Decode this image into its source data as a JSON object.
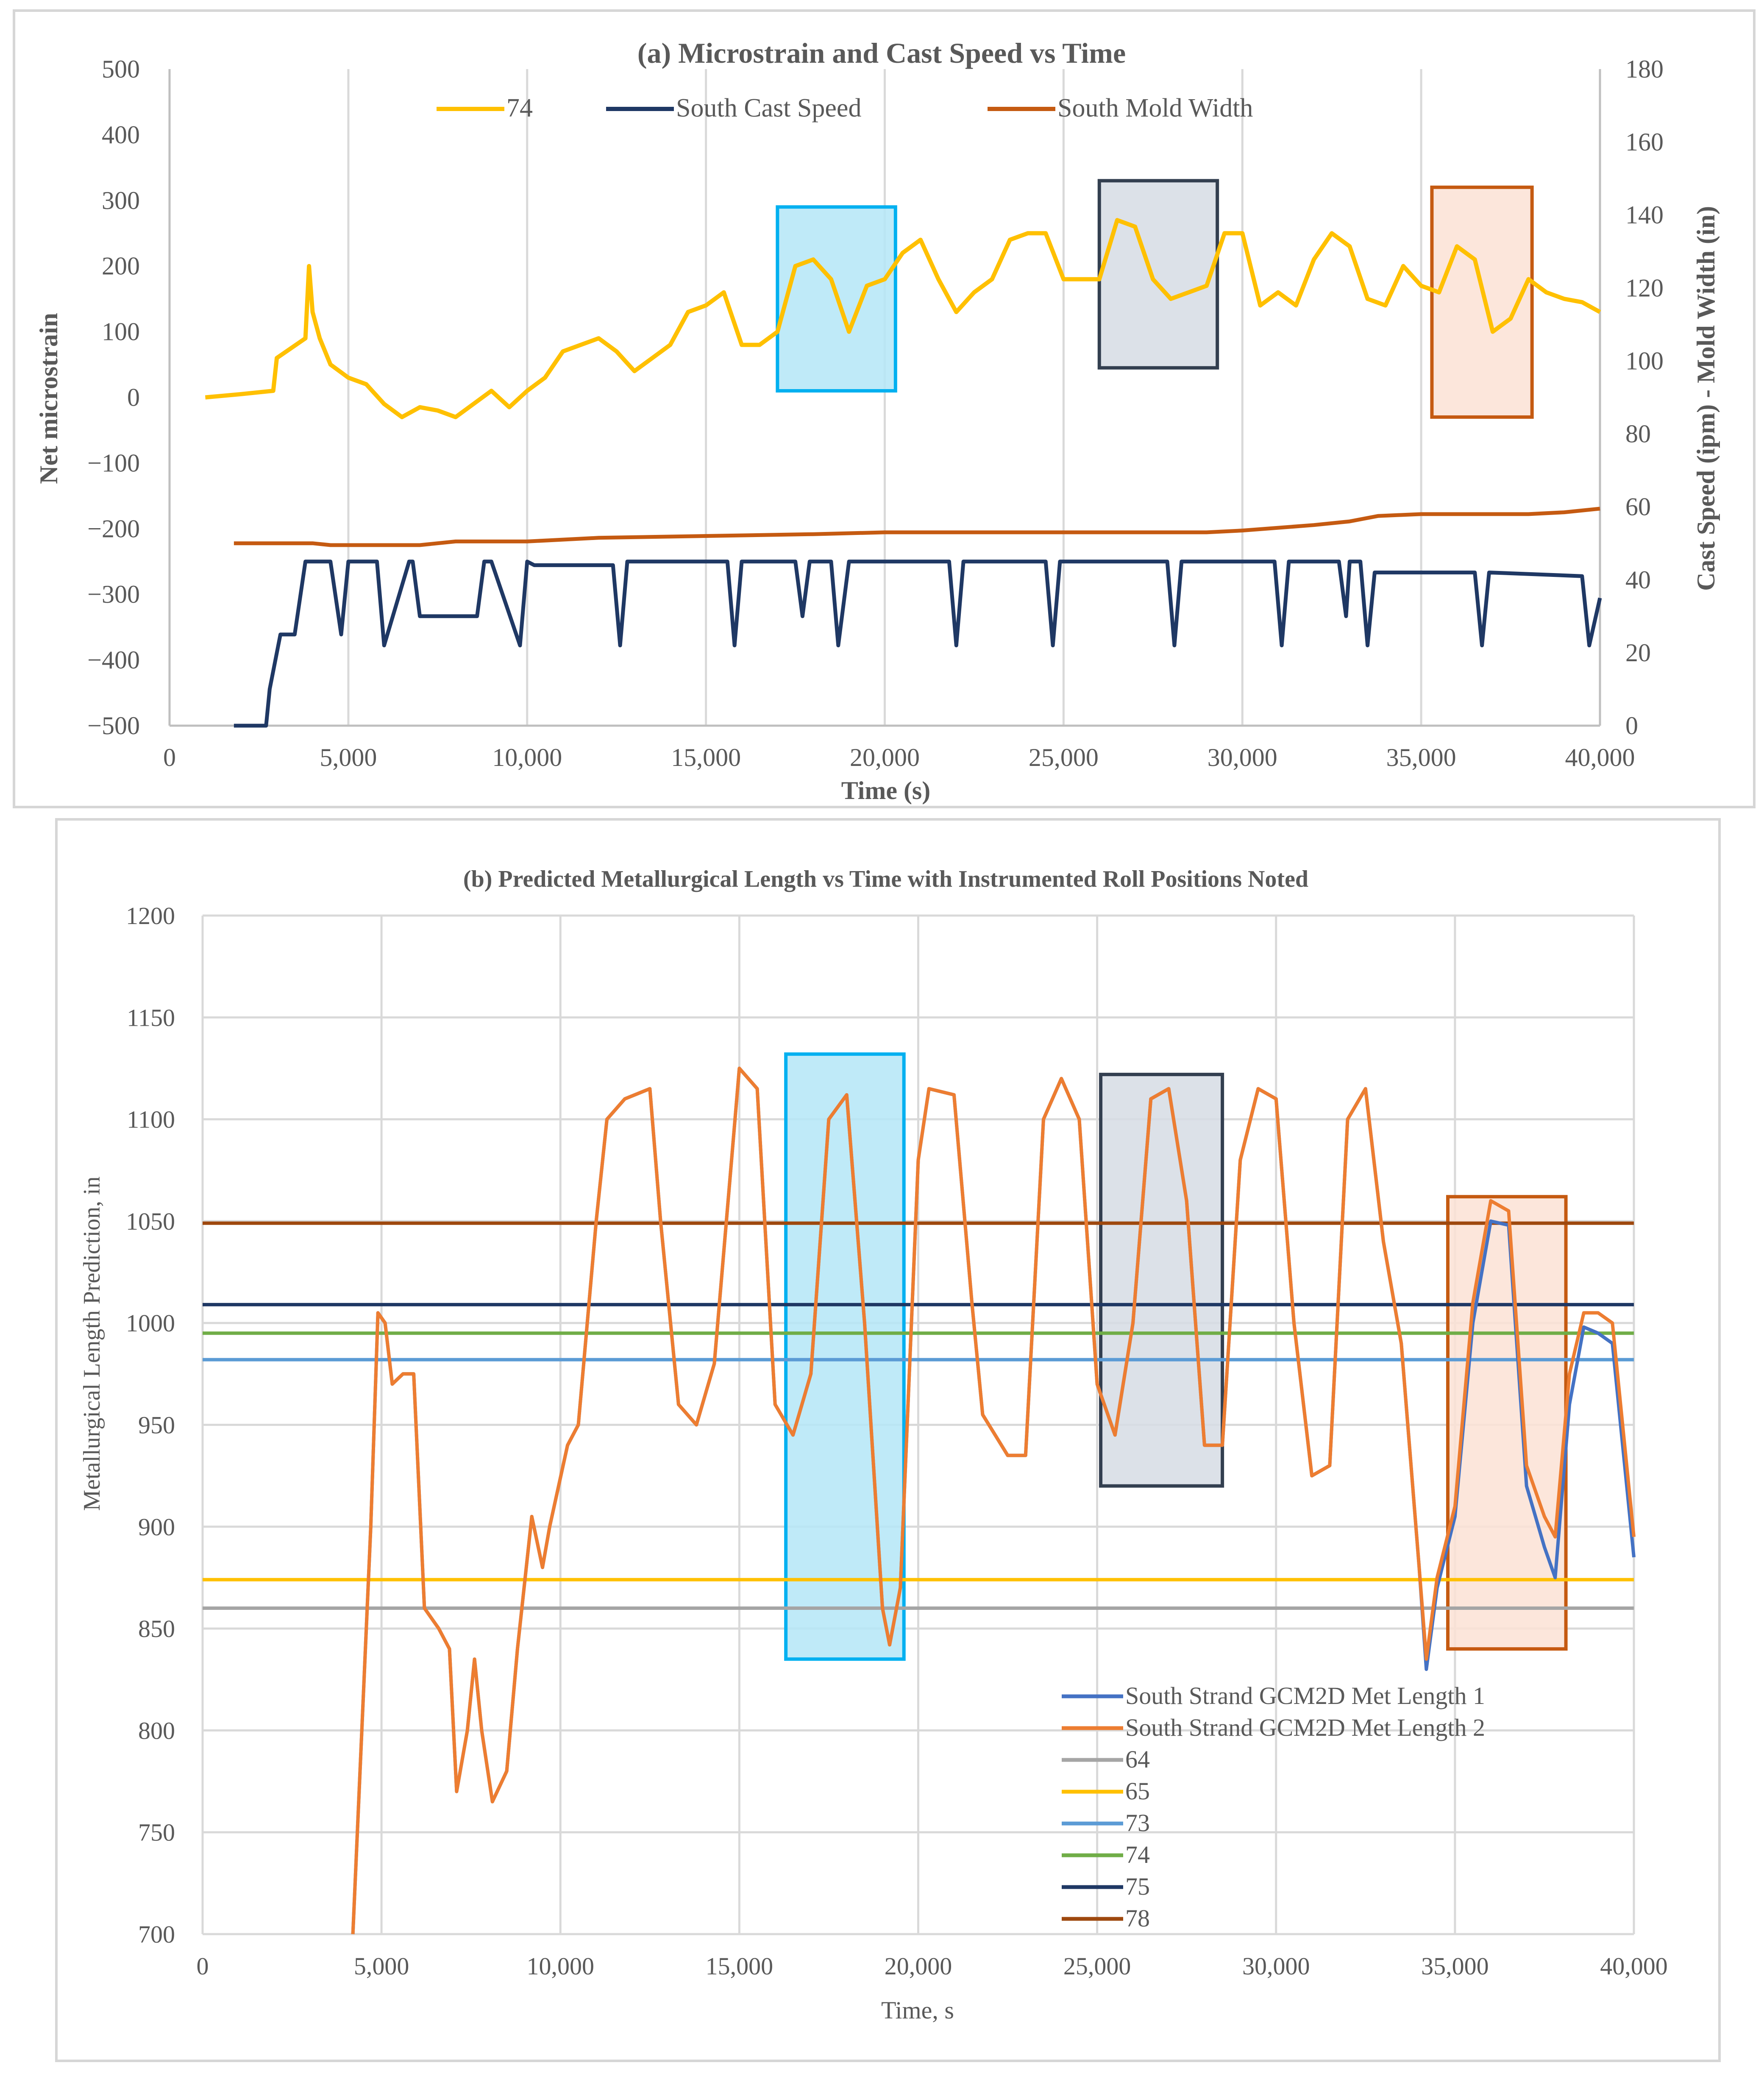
{
  "chart_data": [
    {
      "type": "line",
      "title": "(a) Microstrain and Cast Speed  vs Time",
      "xlabel": "Time (s)",
      "ylabel": "Net microstrain",
      "y2label": "Cast Speed (ipm) - Mold Width (in)",
      "xlim": [
        0,
        40000
      ],
      "ylim": [
        -500,
        500
      ],
      "y2lim": [
        0,
        180
      ],
      "xticks": [
        0,
        5000,
        10000,
        15000,
        20000,
        25000,
        30000,
        35000,
        40000
      ],
      "xtick_labels": [
        "0",
        "5,000",
        "10,000",
        "15,000",
        "20,000",
        "25,000",
        "30,000",
        "35,000",
        "40,000"
      ],
      "yticks": [
        -500,
        -400,
        -300,
        -200,
        -100,
        0,
        100,
        200,
        300,
        400,
        500
      ],
      "ytick_labels": [
        "−500",
        "−400",
        "−300",
        "−200",
        "−100",
        "0",
        "100",
        "200",
        "300",
        "400",
        "500"
      ],
      "y2ticks": [
        0,
        20,
        40,
        60,
        80,
        100,
        120,
        140,
        160,
        180
      ],
      "y2tick_labels": [
        "0",
        "20",
        "40",
        "60",
        "80",
        "100",
        "120",
        "140",
        "160",
        "180"
      ],
      "grid": "vertical",
      "legend_position": "top",
      "series": [
        {
          "name": "74",
          "axis": "left",
          "color": "#FFC000",
          "x": [
            1000,
            2000,
            2900,
            3000,
            3800,
            3900,
            4000,
            4200,
            4500,
            5000,
            5500,
            6000,
            6500,
            7000,
            7500,
            8000,
            8500,
            9000,
            9500,
            10000,
            10500,
            11000,
            11500,
            12000,
            12500,
            13000,
            13500,
            14000,
            14500,
            15000,
            15500,
            16000,
            16500,
            17000,
            17500,
            18000,
            18500,
            19000,
            19500,
            20000,
            20500,
            21000,
            21500,
            22000,
            22500,
            23000,
            23500,
            24000,
            24500,
            25000,
            25500,
            26000,
            26500,
            27000,
            27500,
            28000,
            28500,
            29000,
            29500,
            30000,
            30500,
            31000,
            31500,
            32000,
            32500,
            33000,
            33500,
            34000,
            34500,
            35000,
            35500,
            36000,
            36500,
            37000,
            37500,
            38000,
            38500,
            39000,
            39500,
            40000
          ],
          "values": [
            0,
            5,
            10,
            60,
            90,
            200,
            130,
            90,
            50,
            30,
            20,
            -10,
            -30,
            -15,
            -20,
            -30,
            -10,
            10,
            -15,
            10,
            30,
            70,
            80,
            90,
            70,
            40,
            60,
            80,
            130,
            140,
            160,
            80,
            80,
            100,
            200,
            210,
            180,
            100,
            170,
            180,
            220,
            240,
            180,
            130,
            160,
            180,
            240,
            250,
            250,
            180,
            180,
            180,
            270,
            260,
            180,
            150,
            160,
            170,
            250,
            250,
            140,
            160,
            140,
            210,
            250,
            230,
            150,
            140,
            200,
            170,
            160,
            230,
            210,
            100,
            120,
            180,
            160,
            150,
            145,
            130
          ]
        },
        {
          "name": "South Cast Speed",
          "axis": "right",
          "color": "#1F3864",
          "x": [
            1800,
            2700,
            2800,
            3100,
            3500,
            3800,
            4000,
            4500,
            4800,
            5000,
            5200,
            5800,
            6000,
            6700,
            6800,
            7000,
            8600,
            8800,
            9000,
            9800,
            10000,
            10200,
            12400,
            12600,
            12800,
            15600,
            15800,
            16000,
            17500,
            17700,
            17900,
            18500,
            18700,
            19000,
            19200,
            21800,
            22000,
            22200,
            24500,
            24700,
            24900,
            27900,
            28100,
            28300,
            30900,
            31100,
            31300,
            32700,
            32900,
            33000,
            33300,
            33500,
            33700,
            34200,
            36500,
            36700,
            36900,
            39500,
            39700,
            40000
          ],
          "values": [
            0,
            0,
            10,
            25,
            25,
            45,
            45,
            45,
            25,
            45,
            45,
            45,
            22,
            45,
            45,
            30,
            30,
            45,
            45,
            22,
            45,
            44,
            44,
            22,
            45,
            45,
            22,
            45,
            45,
            30,
            45,
            45,
            22,
            45,
            45,
            45,
            22,
            45,
            45,
            22,
            45,
            45,
            22,
            45,
            45,
            22,
            45,
            45,
            30,
            45,
            45,
            22,
            42,
            42,
            42,
            22,
            42,
            41,
            22,
            35
          ]
        },
        {
          "name": "South Mold Width",
          "axis": "right",
          "color": "#C55A11",
          "x": [
            1800,
            4000,
            4500,
            7000,
            8000,
            10000,
            12000,
            15000,
            18000,
            20000,
            25000,
            29000,
            30000,
            32000,
            33000,
            33800,
            35000,
            38000,
            39000,
            40000
          ],
          "values": [
            50,
            50,
            49.5,
            49.5,
            50.5,
            50.5,
            51.5,
            52,
            52.5,
            53,
            53,
            53,
            53.5,
            55,
            56,
            57.5,
            58,
            58,
            58.5,
            59.5
          ]
        }
      ],
      "highlight_boxes": [
        {
          "color": "#00B0F0",
          "fill": "#B4E6F7",
          "x_range": [
            17000,
            20300
          ],
          "y_range": [
            10,
            290
          ]
        },
        {
          "color": "#333F50",
          "fill": "#D6DCE4",
          "x_range": [
            26000,
            29300
          ],
          "y_range": [
            45,
            330
          ]
        },
        {
          "color": "#C55A11",
          "fill": "#FBE2D5",
          "x_range": [
            35300,
            38100
          ],
          "y_range": [
            -30,
            320
          ]
        }
      ]
    },
    {
      "type": "line",
      "title": "(b) Predicted Metallurgical Length vs Time with Instrumented Roll Positions Noted",
      "xlabel": "Time, s",
      "ylabel": "Metallurgical Length Prediction, in",
      "xlim": [
        0,
        40000
      ],
      "ylim": [
        700,
        1200
      ],
      "xticks": [
        0,
        5000,
        10000,
        15000,
        20000,
        25000,
        30000,
        35000,
        40000
      ],
      "xtick_labels": [
        "0",
        "5,000",
        "10,000",
        "15,000",
        "20,000",
        "25,000",
        "30,000",
        "35,000",
        "40,000"
      ],
      "yticks": [
        700,
        750,
        800,
        850,
        900,
        950,
        1000,
        1050,
        1100,
        1150,
        1200
      ],
      "ytick_labels": [
        "700",
        "750",
        "800",
        "850",
        "900",
        "950",
        "1000",
        "1050",
        "1100",
        "1150",
        "1200"
      ],
      "grid": "both",
      "legend_position": "bottom-right",
      "series": [
        {
          "name": "South Strand GCM2D Met Length 1",
          "color": "#4472C4",
          "x": [
            4200,
            4700,
            4900,
            5100,
            5300,
            5600,
            5900,
            6200,
            6600,
            6900,
            7100,
            7400,
            7600,
            7800,
            8100,
            8500,
            8800,
            9200,
            9500,
            9700,
            10200,
            10500,
            11000,
            11300,
            11800,
            12500,
            12800,
            13300,
            13800,
            14300,
            15000,
            15500,
            16000,
            16500,
            17000,
            17500,
            18000,
            18500,
            19000,
            19200,
            19500,
            20000,
            20300,
            21000,
            21500,
            21800,
            22500,
            23000,
            23500,
            24000,
            24500,
            25000,
            25500,
            26000,
            26500,
            27000,
            27500,
            28000,
            28500,
            29000,
            29500,
            30000,
            30500,
            31000,
            31500,
            32000,
            32500,
            33000,
            33500,
            34000,
            34200,
            34500,
            35000,
            35500,
            36000,
            36500,
            37000,
            37500,
            37800,
            38200,
            38600,
            39000,
            39400,
            40000
          ],
          "values": [
            700,
            900,
            1005,
            1000,
            970,
            975,
            975,
            860,
            850,
            840,
            770,
            800,
            835,
            800,
            765,
            780,
            840,
            905,
            880,
            900,
            940,
            950,
            1050,
            1100,
            1110,
            1115,
            1050,
            960,
            950,
            980,
            1125,
            1115,
            960,
            945,
            975,
            1100,
            1112,
            1000,
            860,
            842,
            870,
            1080,
            1115,
            1112,
            1010,
            955,
            935,
            935,
            1100,
            1120,
            1100,
            970,
            945,
            1000,
            1110,
            1115,
            1060,
            940,
            940,
            1080,
            1115,
            1110,
            1000,
            925,
            930,
            1100,
            1115,
            1040,
            990,
            880,
            830,
            870,
            905,
            1000,
            1050,
            1048,
            920,
            890,
            875,
            960,
            998,
            995,
            990,
            885
          ]
        },
        {
          "name": "South Strand GCM2D Met Length 2",
          "color": "#ED7D31",
          "x": [
            4200,
            4700,
            4900,
            5100,
            5300,
            5600,
            5900,
            6200,
            6600,
            6900,
            7100,
            7400,
            7600,
            7800,
            8100,
            8500,
            8800,
            9200,
            9500,
            9700,
            10200,
            10500,
            11000,
            11300,
            11800,
            12500,
            12800,
            13300,
            13800,
            14300,
            15000,
            15500,
            16000,
            16500,
            17000,
            17500,
            18000,
            18500,
            19000,
            19200,
            19500,
            20000,
            20300,
            21000,
            21500,
            21800,
            22500,
            23000,
            23500,
            24000,
            24500,
            25000,
            25500,
            26000,
            26500,
            27000,
            27500,
            28000,
            28500,
            29000,
            29500,
            30000,
            30500,
            31000,
            31500,
            32000,
            32500,
            33000,
            33500,
            34000,
            34200,
            34500,
            35000,
            35500,
            36000,
            36500,
            37000,
            37500,
            37800,
            38200,
            38600,
            39000,
            39400,
            40000
          ],
          "values": [
            700,
            900,
            1005,
            1000,
            970,
            975,
            975,
            860,
            850,
            840,
            770,
            800,
            835,
            800,
            765,
            780,
            840,
            905,
            880,
            900,
            940,
            950,
            1050,
            1100,
            1110,
            1115,
            1050,
            960,
            950,
            980,
            1125,
            1115,
            960,
            945,
            975,
            1100,
            1112,
            1000,
            860,
            842,
            870,
            1080,
            1115,
            1112,
            1010,
            955,
            935,
            935,
            1100,
            1120,
            1100,
            970,
            945,
            1000,
            1110,
            1115,
            1060,
            940,
            940,
            1080,
            1115,
            1110,
            1000,
            925,
            930,
            1100,
            1115,
            1040,
            990,
            880,
            835,
            875,
            910,
            1010,
            1060,
            1055,
            930,
            905,
            895,
            975,
            1005,
            1005,
            1000,
            895
          ]
        },
        {
          "name": "64",
          "color": "#A5A5A5",
          "x": [
            0,
            40000
          ],
          "values": [
            860,
            860
          ]
        },
        {
          "name": "65",
          "color": "#FFC000",
          "x": [
            0,
            40000
          ],
          "values": [
            874,
            874
          ]
        },
        {
          "name": "73",
          "color": "#5B9BD5",
          "x": [
            0,
            40000
          ],
          "values": [
            982,
            982
          ]
        },
        {
          "name": "74",
          "color": "#70AD47",
          "x": [
            0,
            40000
          ],
          "values": [
            995,
            995
          ]
        },
        {
          "name": "75",
          "color": "#1F3864",
          "x": [
            0,
            40000
          ],
          "values": [
            1009,
            1009
          ]
        },
        {
          "name": "78",
          "color": "#9E480E",
          "x": [
            0,
            40000
          ],
          "values": [
            1049,
            1049
          ]
        }
      ],
      "highlight_boxes": [
        {
          "color": "#00B0F0",
          "fill": "#B4E6F7",
          "x_range": [
            16300,
            19600
          ],
          "y_range": [
            835,
            1132
          ]
        },
        {
          "color": "#333F50",
          "fill": "#D6DCE4",
          "x_range": [
            25100,
            28500
          ],
          "y_range": [
            920,
            1122
          ]
        },
        {
          "color": "#C55A11",
          "fill": "#FBE2D5",
          "x_range": [
            34800,
            38100
          ],
          "y_range": [
            840,
            1062
          ]
        }
      ]
    }
  ]
}
